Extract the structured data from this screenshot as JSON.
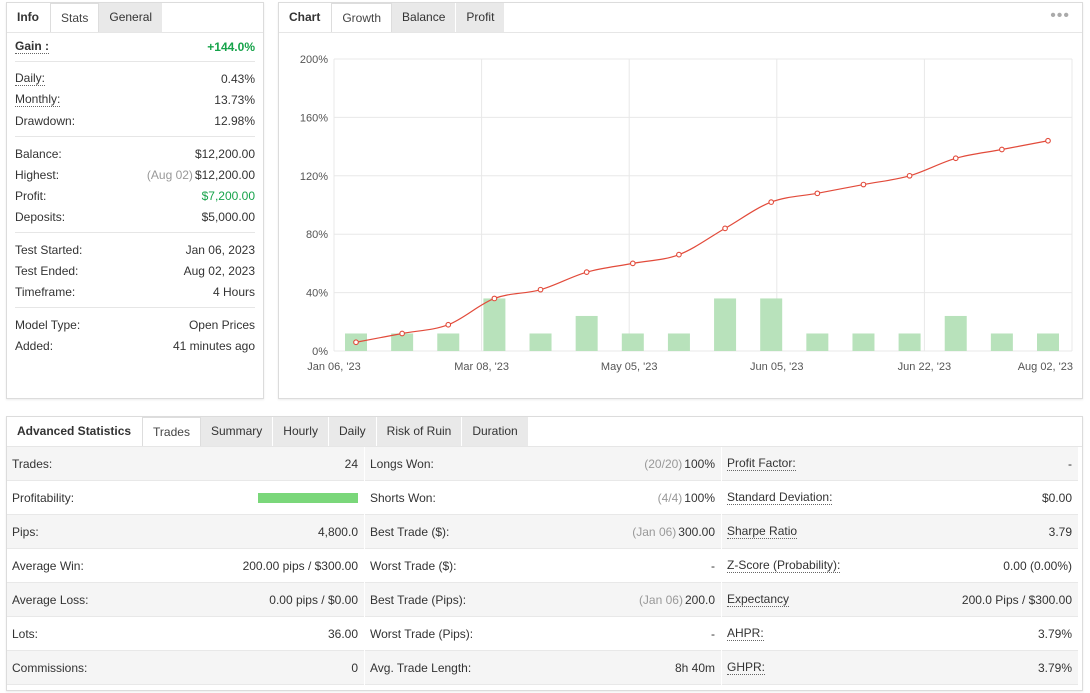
{
  "info": {
    "tabs": [
      "Info",
      "Stats",
      "General"
    ],
    "gain": {
      "label": "Gain :",
      "value": "+144.0%"
    },
    "group1": [
      {
        "label": "Daily:",
        "value": "0.43%"
      },
      {
        "label": "Monthly:",
        "value": "13.73%"
      },
      {
        "label": "Drawdown:",
        "value": "12.98%"
      }
    ],
    "group2": [
      {
        "label": "Balance:",
        "value": "$12,200.00"
      },
      {
        "label": "Highest:",
        "muted": "(Aug 02)",
        "value": "$12,200.00"
      },
      {
        "label": "Profit:",
        "value": "$7,200.00"
      },
      {
        "label": "Deposits:",
        "value": "$5,000.00"
      }
    ],
    "group3": [
      {
        "label": "Test Started:",
        "value": "Jan 06, 2023"
      },
      {
        "label": "Test Ended:",
        "value": "Aug 02, 2023"
      },
      {
        "label": "Timeframe:",
        "value": "4 Hours"
      }
    ],
    "group4": [
      {
        "label": "Model Type:",
        "value": "Open Prices"
      },
      {
        "label": "Added:",
        "value": "41 minutes ago"
      }
    ]
  },
  "chart_panel": {
    "tabs": [
      "Chart",
      "Growth",
      "Balance",
      "Profit"
    ],
    "menu_icon": "more-dots-icon"
  },
  "chart_data": {
    "type": "bar",
    "x_tick_labels": [
      "Jan 06, '23",
      "Mar 08, '23",
      "May 05, '23",
      "Jun 05, '23",
      "Jun 22, '23",
      "Aug 02, '23"
    ],
    "y_tick_labels": [
      "0%",
      "40%",
      "80%",
      "120%",
      "160%",
      "200%"
    ],
    "ylim": [
      0,
      200
    ],
    "grid": true,
    "line_color": "#e24b3b",
    "bar_color": "#b8e2bb",
    "series": [
      {
        "type": "line",
        "values": [
          6,
          12,
          18,
          36,
          42,
          54,
          60,
          66,
          84,
          102,
          108,
          114,
          120,
          132,
          138,
          144
        ]
      },
      {
        "type": "bar",
        "values": [
          12,
          12,
          12,
          36,
          12,
          24,
          12,
          12,
          36,
          36,
          12,
          12,
          12,
          24,
          12,
          12
        ]
      }
    ]
  },
  "advanced": {
    "tabs": [
      "Advanced Statistics",
      "Trades",
      "Summary",
      "Hourly",
      "Daily",
      "Risk of Ruin",
      "Duration"
    ],
    "col1": [
      {
        "label": "Trades:",
        "value": "24"
      },
      {
        "label": "Profitability:",
        "bar": 1.0
      },
      {
        "label": "Pips:",
        "value": "4,800.0"
      },
      {
        "label": "Average Win:",
        "value": "200.00 pips / $300.00"
      },
      {
        "label": "Average Loss:",
        "value": "0.00 pips / $0.00"
      },
      {
        "label": "Lots:",
        "value": "36.00"
      },
      {
        "label": "Commissions:",
        "value": "0"
      }
    ],
    "col2": [
      {
        "label": "Longs Won:",
        "muted": "(20/20)",
        "value": "100%"
      },
      {
        "label": "Shorts Won:",
        "muted": "(4/4)",
        "value": "100%"
      },
      {
        "label": "Best Trade ($):",
        "muted": "(Jan 06)",
        "value": "300.00"
      },
      {
        "label": "Worst Trade ($):",
        "value": "-"
      },
      {
        "label": "Best Trade (Pips):",
        "muted": "(Jan 06)",
        "value": "200.0"
      },
      {
        "label": "Worst Trade (Pips):",
        "value": "-"
      },
      {
        "label": "Avg. Trade Length:",
        "value": "8h 40m"
      }
    ],
    "col3": [
      {
        "label": "Profit Factor:",
        "value": "-"
      },
      {
        "label": "Standard Deviation:",
        "value": "$0.00"
      },
      {
        "label": "Sharpe Ratio",
        "value": "3.79"
      },
      {
        "label": "Z-Score (Probability):",
        "value": "0.00 (0.00%)"
      },
      {
        "label": "Expectancy",
        "value": "200.0 Pips / $300.00"
      },
      {
        "label": "AHPR:",
        "value": "3.79%"
      },
      {
        "label": "GHPR:",
        "value": "3.79%"
      }
    ]
  }
}
